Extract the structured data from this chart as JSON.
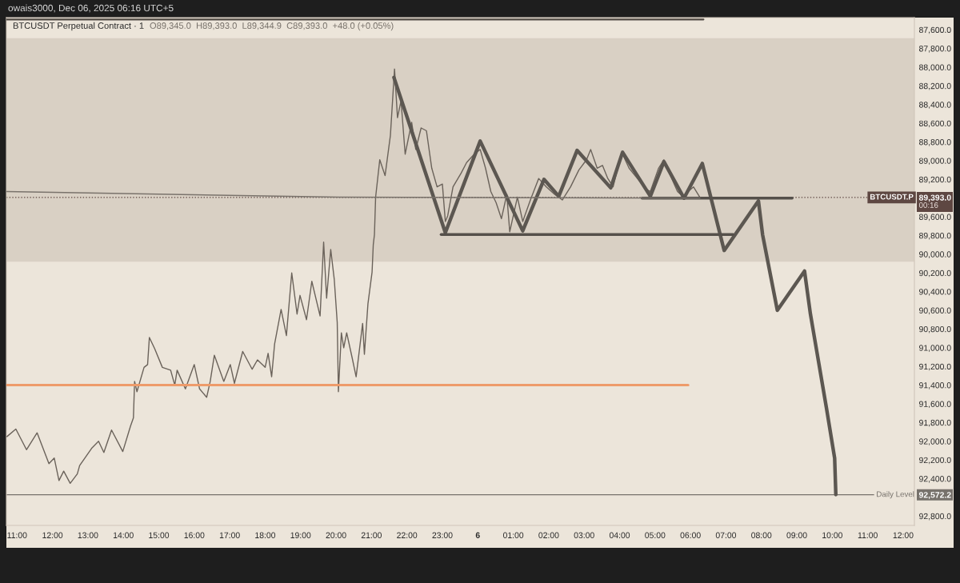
{
  "chart_data": {
    "type": "line",
    "title": "BTCUSDT Perpetual Contract · 1",
    "subtitle": "O89,345.0  H89,393.0  L89,344.9  C89,393.0  +48.0 (+0.05%)",
    "annotations": [
      "owais3000, Dec 06, 2025 06:16 UTC+5",
      "00:16"
    ],
    "series": [
      {
        "color": "#6a625a",
        "x": [
          "2025-12-05T10:43",
          "2025-12-05T10:58",
          "2025-12-05T11:16",
          "2025-12-05T11:34",
          "2025-12-05T11:54",
          "2025-12-05T12:03",
          "2025-12-05T12:11",
          "2025-12-05T12:19",
          "2025-12-05T12:30",
          "2025-12-05T12:42",
          "2025-12-05T12:46",
          "2025-12-05T13:07",
          "2025-12-05T13:18",
          "2025-12-05T13:27",
          "2025-12-05T13:40",
          "2025-12-05T13:59",
          "2025-12-05T14:12",
          "2025-12-05T14:17",
          "2025-12-05T14:19",
          "2025-12-05T14:23",
          "2025-12-05T14:35",
          "2025-12-05T14:41",
          "2025-12-05T14:44",
          "2025-12-05T14:53",
          "2025-12-05T15:06",
          "2025-12-05T15:20",
          "2025-12-05T15:27",
          "2025-12-05T15:31",
          "2025-12-05T15:45",
          "2025-12-05T16:00",
          "2025-12-05T16:09",
          "2025-12-05T16:21",
          "2025-12-05T16:27",
          "2025-12-05T16:34",
          "2025-12-05T16:50",
          "2025-12-05T17:01",
          "2025-12-05T17:08",
          "2025-12-05T17:22",
          "2025-12-05T17:38",
          "2025-12-05T17:47",
          "2025-12-05T18:00",
          "2025-12-05T18:05",
          "2025-12-05T18:11",
          "2025-12-05T18:16",
          "2025-12-05T18:27",
          "2025-12-05T18:36",
          "2025-12-05T18:45",
          "2025-12-05T18:54",
          "2025-12-05T18:59",
          "2025-12-05T19:10",
          "2025-12-05T19:19",
          "2025-12-05T19:33",
          "2025-12-05T19:39",
          "2025-12-05T19:44",
          "2025-12-05T19:51",
          "2025-12-05T19:57",
          "2025-12-05T20:02",
          "2025-12-05T20:04",
          "2025-12-05T20:09",
          "2025-12-05T20:13",
          "2025-12-05T20:18",
          "2025-12-05T20:27",
          "2025-12-05T20:34",
          "2025-12-05T20:45",
          "2025-12-05T20:48",
          "2025-12-05T20:54",
          "2025-12-05T21:01",
          "2025-12-05T21:03",
          "2025-12-05T21:05",
          "2025-12-05T21:07",
          "2025-12-05T21:14",
          "2025-12-05T21:23",
          "2025-12-05T21:32",
          "2025-12-05T21:39",
          "2025-12-05T21:44",
          "2025-12-05T21:50",
          "2025-12-05T21:57",
          "2025-12-05T22:08",
          "2025-12-05T22:15",
          "2025-12-05T22:24",
          "2025-12-05T22:33",
          "2025-12-05T22:42",
          "2025-12-05T22:51",
          "2025-12-05T23:00",
          "2025-12-05T23:05",
          "2025-12-05T23:09",
          "2025-12-05T23:18",
          "2025-12-05T23:32",
          "2025-12-05T23:41",
          "2025-12-05T23:54",
          "2025-12-06T00:04",
          "2025-12-06T00:13",
          "2025-12-06T00:22",
          "2025-12-06T00:31",
          "2025-12-06T00:40",
          "2025-12-06T00:49",
          "2025-12-06T00:54",
          "2025-12-06T01:07",
          "2025-12-06T01:16",
          "2025-12-06T01:29",
          "2025-12-06T01:43",
          "2025-12-06T01:56",
          "2025-12-06T02:10",
          "2025-12-06T02:23",
          "2025-12-06T02:37",
          "2025-12-06T02:51",
          "2025-12-06T03:04",
          "2025-12-06T03:11",
          "2025-12-06T03:22",
          "2025-12-06T03:31",
          "2025-12-06T03:40",
          "2025-12-06T03:49",
          "2025-12-06T03:58",
          "2025-12-06T04:05",
          "2025-12-06T04:16",
          "2025-12-06T04:30",
          "2025-12-06T04:44",
          "2025-12-06T04:52",
          "2025-12-06T05:06",
          "2025-12-06T05:15",
          "2025-12-06T05:24",
          "2025-12-06T05:38",
          "2025-12-06T05:47",
          "2025-12-06T05:56",
          "2025-12-06T06:05",
          "2025-12-06T06:16"
        ],
        "values": [
          91950,
          91870,
          92090,
          91910,
          92240,
          92180,
          92420,
          92320,
          92450,
          92350,
          92260,
          92070,
          92000,
          92120,
          91880,
          92110,
          91840,
          91750,
          91360,
          91470,
          91210,
          91180,
          90890,
          91010,
          91210,
          91240,
          91400,
          91240,
          91440,
          91180,
          91440,
          91530,
          91360,
          91080,
          91360,
          91180,
          91380,
          91040,
          91230,
          91130,
          91210,
          91060,
          91310,
          90960,
          90590,
          90870,
          90200,
          90640,
          90440,
          90700,
          90290,
          90660,
          89870,
          90470,
          89950,
          90270,
          90730,
          91470,
          90840,
          91000,
          90840,
          91100,
          91310,
          90740,
          91070,
          90530,
          90190,
          89900,
          89790,
          89390,
          88990,
          89160,
          88730,
          88020,
          88540,
          88360,
          88930,
          88590,
          88880,
          88650,
          88680,
          89080,
          89280,
          89250,
          89650,
          89590,
          89280,
          89130,
          89020,
          88930,
          88880,
          89080,
          89330,
          89450,
          89620,
          89360,
          89760,
          89390,
          89650,
          89420,
          89190,
          89280,
          89360,
          89420,
          89280,
          89100,
          88990,
          88880,
          89080,
          89050,
          89190,
          89280,
          89050,
          88930,
          89080,
          89190,
          89300,
          89330,
          89080,
          88990,
          89130,
          89330,
          89380,
          89330,
          89280,
          89393
        ]
      },
      {
        "color": "#5c5751",
        "x": [
          "2025-12-05T21:38",
          "2025-12-05T23:05",
          "2025-12-06T00:04",
          "2025-12-06T01:16",
          "2025-12-06T01:52",
          "2025-12-06T02:17",
          "2025-12-06T02:48",
          "2025-12-06T03:45",
          "2025-12-06T04:05",
          "2025-12-06T04:52",
          "2025-12-06T05:15",
          "2025-12-06T05:49",
          "2025-12-06T06:20",
          "2025-12-06T06:57",
          "2025-12-06T07:55",
          "2025-12-06T08:02",
          "2025-12-06T08:27",
          "2025-12-06T09:13",
          "2025-12-06T09:23",
          "2025-12-06T09:50",
          "2025-12-06T10:04",
          "2025-12-06T10:06"
        ],
        "values": [
          88110,
          89770,
          88790,
          89750,
          89200,
          89380,
          88890,
          89290,
          88910,
          89380,
          89010,
          89400,
          89030,
          89960,
          89430,
          89790,
          90600,
          90180,
          90640,
          91640,
          92180,
          92570
        ]
      },
      {
        "color": "#55504b",
        "x": [
          "2025-12-06T04:38",
          "2025-12-06T08:52"
        ],
        "values": [
          89400,
          89400
        ]
      },
      {
        "color": "#55504b",
        "x": [
          "2025-12-05T22:58",
          "2025-12-06T07:12"
        ],
        "values": [
          89790,
          89790
        ]
      },
      {
        "color": "#ee9b6a",
        "x": [
          "2025-12-05T10:42",
          "2025-12-06T05:56"
        ],
        "values": [
          91400,
          91400
        ]
      },
      {
        "color": "#4f4842",
        "x": [
          "2025-12-05T10:42",
          "2025-12-06T06:22"
        ],
        "values": [
          87490,
          87490
        ]
      },
      {
        "color": "#7a736c",
        "x": [
          "2025-12-05T10:42",
          "2025-12-05T20:04",
          "2025-12-06T06:16"
        ],
        "values": [
          89330,
          89390,
          89400
        ]
      }
    ],
    "ref_lines": [
      {
        "axis": "y",
        "value": 92572.2,
        "label": "Daily Level",
        "color": "#77726c"
      },
      {
        "axis": "y",
        "value": 89393,
        "label": "BTCUSDT.P",
        "color": "#5e4742",
        "line_style": "dotted"
      }
    ],
    "bands": [
      {
        "axis": "y",
        "from": 87690,
        "to": 90080,
        "color": "#d9d0c4"
      }
    ],
    "xlim": [
      "2025-12-05T10:42",
      "2025-12-06T12:19"
    ],
    "xticks": [
      {
        "value": "2025-12-05T11:00",
        "label": "11:00"
      },
      {
        "value": "2025-12-05T12:00",
        "label": "12:00"
      },
      {
        "value": "2025-12-05T13:00",
        "label": "13:00"
      },
      {
        "value": "2025-12-05T14:00",
        "label": "14:00"
      },
      {
        "value": "2025-12-05T15:00",
        "label": "15:00"
      },
      {
        "value": "2025-12-05T16:00",
        "label": "16:00"
      },
      {
        "value": "2025-12-05T17:00",
        "label": "17:00"
      },
      {
        "value": "2025-12-05T18:00",
        "label": "18:00"
      },
      {
        "value": "2025-12-05T19:00",
        "label": "19:00"
      },
      {
        "value": "2025-12-05T20:00",
        "label": "20:00"
      },
      {
        "value": "2025-12-05T21:00",
        "label": "21:00"
      },
      {
        "value": "2025-12-05T22:00",
        "label": "22:00"
      },
      {
        "value": "2025-12-05T23:00",
        "label": "23:00"
      },
      {
        "value": "2025-12-06T00:00",
        "label": "6"
      },
      {
        "value": "2025-12-06T01:00",
        "label": "01:00"
      },
      {
        "value": "2025-12-06T02:00",
        "label": "02:00"
      },
      {
        "value": "2025-12-06T03:00",
        "label": "03:00"
      },
      {
        "value": "2025-12-06T04:00",
        "label": "04:00"
      },
      {
        "value": "2025-12-06T05:00",
        "label": "05:00"
      },
      {
        "value": "2025-12-06T06:00",
        "label": "06:00"
      },
      {
        "value": "2025-12-06T07:00",
        "label": "07:00"
      },
      {
        "value": "2025-12-06T08:00",
        "label": "08:00"
      },
      {
        "value": "2025-12-06T09:00",
        "label": "09:00"
      },
      {
        "value": "2025-12-06T10:00",
        "label": "10:00"
      },
      {
        "value": "2025-12-06T11:00",
        "label": "11:00"
      },
      {
        "value": "2025-12-06T12:00",
        "label": "12:00"
      }
    ],
    "ylim": [
      92900,
      87470
    ],
    "yticks": [
      {
        "value": 87600,
        "label": "87,600.0"
      },
      {
        "value": 87800,
        "label": "87,800.0"
      },
      {
        "value": 88000,
        "label": "88,000.0"
      },
      {
        "value": 88200,
        "label": "88,200.0"
      },
      {
        "value": 88400,
        "label": "88,400.0"
      },
      {
        "value": 88600,
        "label": "88,600.0"
      },
      {
        "value": 88800,
        "label": "88,800.0"
      },
      {
        "value": 89000,
        "label": "89,000.0"
      },
      {
        "value": 89200,
        "label": "89,200.0"
      },
      {
        "value": 89393,
        "label": "89,393.0"
      },
      {
        "value": 89600,
        "label": "89,600.0"
      },
      {
        "value": 89800,
        "label": "89,800.0"
      },
      {
        "value": 90000,
        "label": "90,000.0"
      },
      {
        "value": 90200,
        "label": "90,200.0"
      },
      {
        "value": 90400,
        "label": "90,400.0"
      },
      {
        "value": 90600,
        "label": "90,600.0"
      },
      {
        "value": 90800,
        "label": "90,800.0"
      },
      {
        "value": 91000,
        "label": "91,000.0"
      },
      {
        "value": 91200,
        "label": "91,200.0"
      },
      {
        "value": 91400,
        "label": "91,400.0"
      },
      {
        "value": 91600,
        "label": "91,600.0"
      },
      {
        "value": 91800,
        "label": "91,800.0"
      },
      {
        "value": 92000,
        "label": "92,000.0"
      },
      {
        "value": 92200,
        "label": "92,200.0"
      },
      {
        "value": 92400,
        "label": "92,400.0"
      },
      {
        "value": 92572.2,
        "label": "92,572.2"
      },
      {
        "value": 92800,
        "label": "92,800.0"
      }
    ],
    "grid": false
  }
}
